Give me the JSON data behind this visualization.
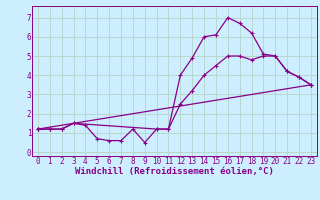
{
  "xlabel": "Windchill (Refroidissement éolien,°C)",
  "bg_color": "#cceeff",
  "grid_color": "#b8d8cc",
  "line_color": "#880088",
  "xlim": [
    -0.5,
    23.5
  ],
  "ylim": [
    -0.2,
    7.6
  ],
  "xticks": [
    0,
    1,
    2,
    3,
    4,
    5,
    6,
    7,
    8,
    9,
    10,
    11,
    12,
    13,
    14,
    15,
    16,
    17,
    18,
    19,
    20,
    21,
    22,
    23
  ],
  "yticks": [
    0,
    1,
    2,
    3,
    4,
    5,
    6,
    7
  ],
  "series1_x": [
    0,
    1,
    2,
    3,
    4,
    5,
    6,
    7,
    8,
    9,
    10,
    11,
    12,
    13,
    14,
    15,
    16,
    17,
    18,
    19,
    20,
    21,
    22,
    23
  ],
  "series1_y": [
    1.2,
    1.2,
    1.2,
    1.5,
    1.4,
    0.7,
    0.6,
    0.6,
    1.2,
    0.5,
    1.2,
    1.2,
    4.0,
    4.9,
    6.0,
    6.1,
    7.0,
    6.7,
    6.2,
    5.1,
    5.0,
    4.2,
    3.9,
    3.5
  ],
  "series2_x": [
    0,
    23
  ],
  "series2_y": [
    1.2,
    3.5
  ],
  "series3_x": [
    0,
    1,
    2,
    3,
    10,
    11,
    12,
    13,
    14,
    15,
    16,
    17,
    18,
    19,
    20,
    21,
    22,
    23
  ],
  "series3_y": [
    1.2,
    1.2,
    1.2,
    1.5,
    1.2,
    1.2,
    2.5,
    3.2,
    4.0,
    4.5,
    5.0,
    5.0,
    4.8,
    5.0,
    5.0,
    4.2,
    3.9,
    3.5
  ],
  "font_size": 6,
  "tick_font_size": 5.5,
  "xlabel_fontsize": 6.5
}
